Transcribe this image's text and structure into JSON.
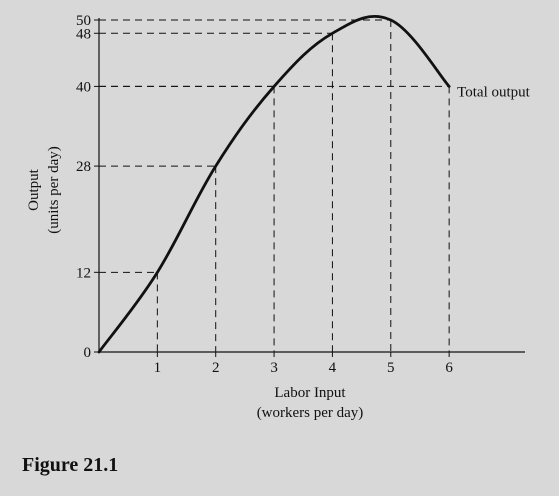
{
  "chart_data": {
    "type": "line",
    "xlabel": "Labor Input",
    "xlabel_sub": "(workers per day)",
    "ylabel": "Output",
    "ylabel_sub": "(units per day)",
    "x": [
      0,
      1,
      2,
      3,
      4,
      5,
      6
    ],
    "y": [
      0,
      12,
      28,
      40,
      48,
      50,
      40
    ],
    "x_ticks": [
      1,
      2,
      3,
      4,
      5,
      6
    ],
    "x_tick_labels": [
      "1",
      "2",
      "3",
      "4",
      "5",
      "6"
    ],
    "y_ticks": [
      0,
      12,
      28,
      40,
      48,
      50
    ],
    "y_tick_labels": [
      "0",
      "12",
      "28",
      "40",
      "48",
      "50"
    ],
    "xlim": [
      0,
      7.3
    ],
    "ylim": [
      0,
      50
    ],
    "series": [
      {
        "name": "Total output",
        "x": [
          0,
          1,
          2,
          3,
          4,
          5,
          6
        ],
        "y": [
          0,
          12,
          28,
          40,
          48,
          50,
          40
        ]
      }
    ],
    "guides": "dashed",
    "grid": false
  },
  "caption": "Figure 21.1",
  "colors": {
    "background": "#d8d8d8",
    "ink": "#111111"
  }
}
